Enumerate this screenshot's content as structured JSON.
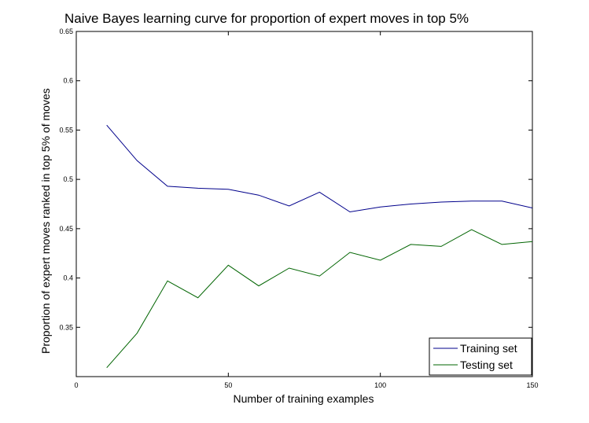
{
  "chart_data": {
    "type": "line",
    "title": "Naive Bayes learning curve for proportion of expert moves in top 5%",
    "xlabel": "Number of training examples",
    "ylabel": "Proportion of expert moves ranked in top 5% of moves",
    "xlim": [
      0,
      150
    ],
    "ylim": [
      0.3,
      0.65
    ],
    "xticks": [
      "0",
      "50",
      "100",
      "150"
    ],
    "yticks": [
      "0.35",
      "0.4",
      "0.45",
      "0.5",
      "0.55",
      "0.6",
      "0.65"
    ],
    "grid": false,
    "legend_position": "bottom-right",
    "x": [
      10,
      20,
      30,
      40,
      50,
      60,
      70,
      80,
      90,
      100,
      110,
      120,
      130,
      140,
      150
    ],
    "series": [
      {
        "name": "Training set",
        "color": "#00008b",
        "values": [
          0.555,
          0.519,
          0.493,
          0.491,
          0.49,
          0.484,
          0.473,
          0.487,
          0.467,
          0.472,
          0.475,
          0.477,
          0.478,
          0.478,
          0.471
        ]
      },
      {
        "name": "Testing set",
        "color": "#006400",
        "values": [
          0.309,
          0.344,
          0.397,
          0.38,
          0.413,
          0.392,
          0.41,
          0.402,
          0.426,
          0.418,
          0.434,
          0.432,
          0.449,
          0.434,
          0.437
        ]
      }
    ]
  }
}
